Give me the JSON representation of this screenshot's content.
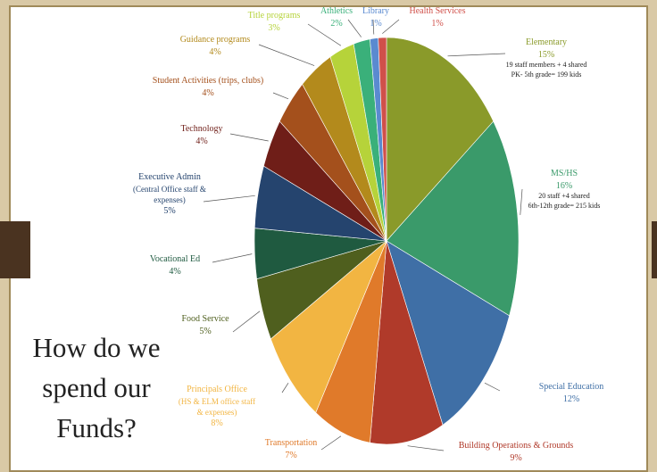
{
  "slide": {
    "title_lines": [
      "How do we",
      "spend our",
      "Funds?"
    ]
  },
  "chart_data": {
    "type": "pie",
    "slices": [
      {
        "label": "Elementary",
        "value": 15,
        "pct_label": "15%",
        "color": "#8a9a2a",
        "notes": [
          "19 staff members + 4 shared",
          "PK- 5th grade= 199 kids"
        ]
      },
      {
        "label": "MS/HS",
        "value": 16,
        "pct_label": "16%",
        "color": "#3a9a6a",
        "notes": [
          "20 staff +4 shared",
          "6th-12th grade= 215 kids"
        ]
      },
      {
        "label": "Special Education",
        "value": 12,
        "pct_label": "12%",
        "color": "#3f6fa6",
        "notes": []
      },
      {
        "label": "Building Operations & Grounds",
        "value": 9,
        "pct_label": "9%",
        "color": "#b03a2a",
        "notes": []
      },
      {
        "label": "Transportation",
        "value": 7,
        "pct_label": "7%",
        "color": "#e07a2a",
        "notes": []
      },
      {
        "label": "Principals Office",
        "sub": [
          "(HS & ELM office staff",
          "& expenses)"
        ],
        "value": 8,
        "pct_label": "8%",
        "color": "#f2b542",
        "notes": []
      },
      {
        "label": "Food Service",
        "value": 5,
        "pct_label": "5%",
        "color": "#4f5f1e",
        "notes": []
      },
      {
        "label": "Vocational Ed",
        "value": 4,
        "pct_label": "4%",
        "color": "#1f5a40",
        "notes": []
      },
      {
        "label": "Executive Admin",
        "sub": [
          "(Central Office staff &",
          "expenses)"
        ],
        "value": 5,
        "pct_label": "5%",
        "color": "#25446e",
        "notes": []
      },
      {
        "label": "Technology",
        "value": 4,
        "pct_label": "4%",
        "color": "#6f1e18",
        "notes": []
      },
      {
        "label": "Student Activities (trips, clubs)",
        "value": 4,
        "pct_label": "4%",
        "color": "#a4501c",
        "notes": []
      },
      {
        "label": "Guidance programs",
        "value": 4,
        "pct_label": "4%",
        "color": "#b38a1c",
        "notes": []
      },
      {
        "label": "Title programs",
        "value": 3,
        "pct_label": "3%",
        "color": "#b6d33a",
        "notes": []
      },
      {
        "label": "Athletics",
        "value": 2,
        "pct_label": "2%",
        "color": "#3ab07a",
        "notes": []
      },
      {
        "label": "Library",
        "value": 1,
        "pct_label": "1%",
        "color": "#5a8ad0",
        "notes": []
      },
      {
        "label": "Health Services",
        "value": 1,
        "pct_label": "1%",
        "color": "#d0504a",
        "notes": []
      }
    ]
  }
}
